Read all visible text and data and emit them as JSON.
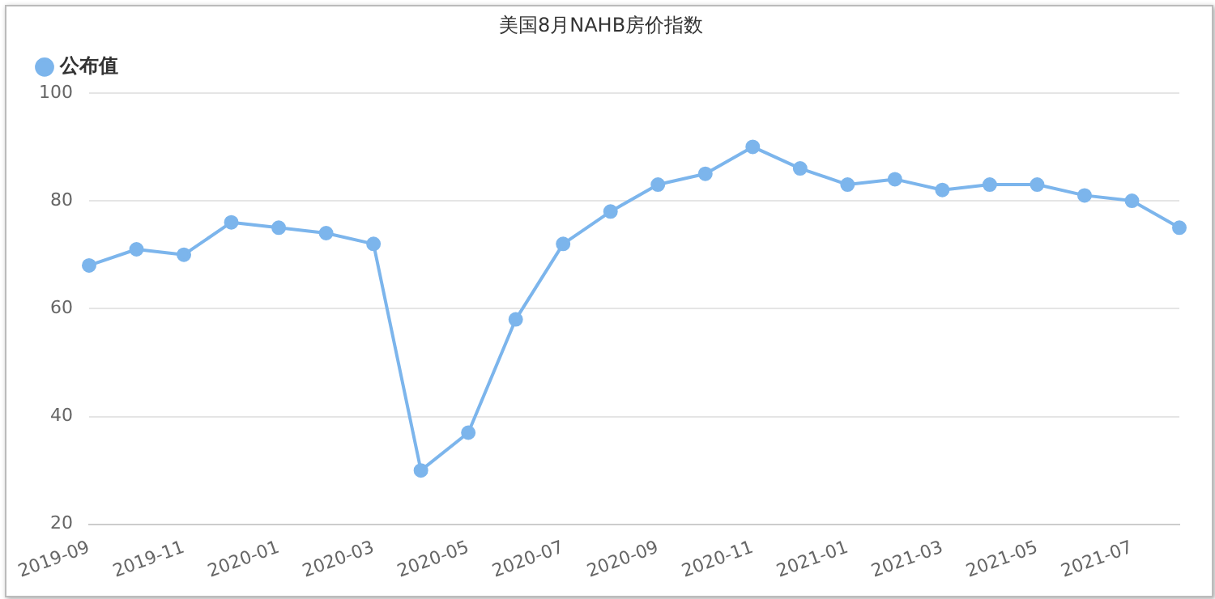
{
  "chart_data": {
    "type": "line",
    "title": "美国8月NAHB房价指数",
    "categories": [
      "2019-09",
      null,
      "2019-11",
      null,
      "2020-01",
      null,
      "2020-03",
      null,
      "2020-05",
      null,
      "2020-07",
      null,
      "2020-09",
      null,
      "2020-11",
      null,
      "2021-01",
      null,
      "2021-03",
      null,
      "2021-05",
      null,
      "2021-07",
      null
    ],
    "series": [
      {
        "name": "公布值",
        "color": "#7cb5ec",
        "values": [
          68,
          71,
          70,
          76,
          75,
          74,
          72,
          30,
          37,
          58,
          72,
          78,
          83,
          85,
          90,
          86,
          83,
          84,
          82,
          83,
          83,
          81,
          80,
          75
        ]
      }
    ],
    "ylim": [
      20,
      100
    ],
    "yticks": [
      20,
      40,
      60,
      80,
      100
    ],
    "grid": "y",
    "legend": "top left",
    "marker": "circle",
    "line_style": "solid"
  }
}
